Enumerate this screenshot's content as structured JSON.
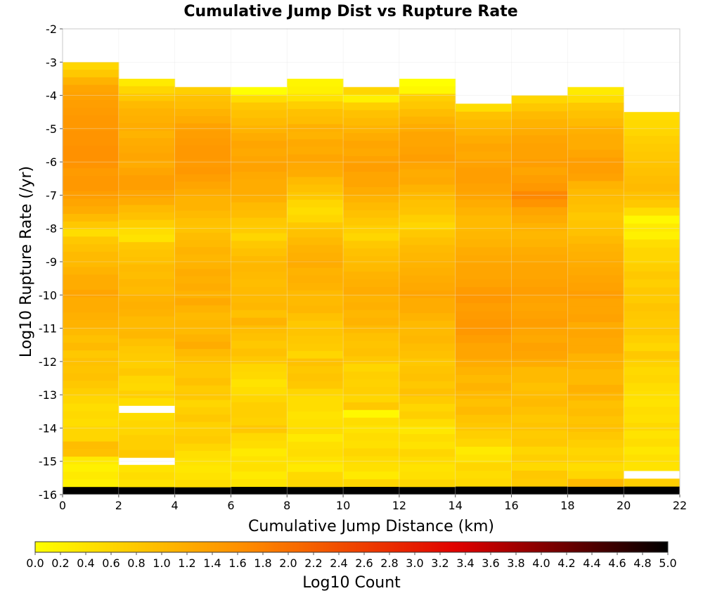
{
  "chart_data": {
    "type": "heatmap",
    "title": "Cumulative Jump Dist vs Rupture Rate",
    "xlabel": "Cumulative Jump Distance (km)",
    "ylabel": "Log10 Rupture Rate (/yr)",
    "colorbar_label": "Log10 Count",
    "xlim": [
      0,
      22
    ],
    "ylim": [
      -16,
      -2
    ],
    "x_ticks": [
      0,
      2,
      4,
      6,
      8,
      10,
      12,
      14,
      16,
      18,
      20,
      22
    ],
    "y_ticks": [
      -2,
      -3,
      -4,
      -5,
      -6,
      -7,
      -8,
      -9,
      -10,
      -11,
      -12,
      -13,
      -14,
      -15,
      -16
    ],
    "colorbar_ticks": [
      "0.0",
      "0.2",
      "0.4",
      "0.6",
      "0.8",
      "1.0",
      "1.2",
      "1.4",
      "1.6",
      "1.8",
      "2.0",
      "2.2",
      "2.4",
      "2.6",
      "2.8",
      "3.0",
      "3.2",
      "3.4",
      "3.6",
      "3.8",
      "4.0",
      "4.2",
      "4.4",
      "4.6",
      "4.8",
      "5.0"
    ],
    "colorbar_range": [
      0,
      5
    ],
    "colormap": [
      "#ffff00",
      "#ff8c00",
      "#e00000",
      "#000000"
    ],
    "x_bin_edges": [
      0,
      2,
      4,
      6,
      8,
      10,
      12,
      14,
      16,
      18,
      20,
      22
    ],
    "y_bin_width": 0.25,
    "column_tops": [
      -3.0,
      -3.5,
      -3.75,
      -3.75,
      -3.5,
      -3.75,
      -3.5,
      -4.25,
      -4.0,
      -3.75,
      -4.5
    ],
    "column_values": [
      [
        0.6,
        0.8,
        1.1,
        1.3,
        1.35,
        1.4,
        1.45,
        1.5,
        1.5,
        1.55,
        1.55,
        1.6,
        1.6,
        1.55,
        1.45,
        1.5,
        1.5,
        1.4,
        1.3,
        1.2,
        1.0,
        0.8,
        0.5,
        0.8,
        0.9,
        1.0,
        1.0,
        1.1,
        1.2,
        1.2,
        1.3,
        1.2,
        1.2,
        1.15,
        1.1,
        1.0,
        0.9,
        1.0,
        0.8,
        0.9,
        0.85,
        0.9,
        0.8,
        0.7,
        0.6,
        0.5,
        0.55,
        0.5,
        0.6,
        0.6,
        0.95,
        0.9,
        0.3,
        0.2,
        0.3,
        0.2,
        5.0
      ],
      [
        0.3,
        0.6,
        0.8,
        1.0,
        1.1,
        1.15,
        1.2,
        1.1,
        1.2,
        1.25,
        1.3,
        1.2,
        1.3,
        1.4,
        1.4,
        1.3,
        1.2,
        1.0,
        0.9,
        0.7,
        0.5,
        0.4,
        0.8,
        0.85,
        0.9,
        1.0,
        0.95,
        1.05,
        1.0,
        1.1,
        1.15,
        1.1,
        1.0,
        1.0,
        1.05,
        0.9,
        0.8,
        0.75,
        0.7,
        0.8,
        0.6,
        0.55,
        0.7,
        0.5,
        null,
        0.5,
        0.6,
        0.6,
        0.7,
        0.7,
        0.8,
        null,
        0.4,
        0.5,
        0.4,
        5.0
      ],
      [
        0.7,
        0.9,
        0.95,
        1.1,
        1.2,
        1.35,
        1.4,
        1.45,
        1.5,
        1.5,
        1.45,
        1.5,
        1.4,
        1.3,
        1.2,
        1.1,
        1.1,
        1.0,
        0.9,
        0.85,
        0.95,
        1.0,
        1.1,
        1.05,
        1.1,
        1.2,
        1.15,
        1.2,
        1.1,
        1.25,
        1.1,
        1.0,
        1.05,
        1.0,
        1.1,
        1.2,
        1.0,
        0.9,
        0.8,
        0.8,
        0.9,
        0.75,
        0.8,
        0.6,
        0.7,
        0.8,
        0.65,
        0.7,
        0.75,
        0.6,
        0.45,
        0.4,
        0.35,
        0.4,
        0.5,
        5.0
      ],
      [
        0.0,
        0.5,
        0.8,
        0.9,
        1.0,
        1.1,
        1.2,
        1.3,
        1.25,
        1.3,
        1.35,
        1.25,
        1.2,
        1.2,
        1.15,
        1.0,
        0.95,
        0.8,
        0.75,
        0.6,
        0.8,
        0.9,
        1.0,
        1.05,
        1.0,
        0.95,
        1.0,
        1.0,
        1.05,
        0.9,
        1.1,
        0.95,
        0.9,
        0.8,
        0.9,
        0.8,
        0.6,
        0.55,
        0.4,
        0.5,
        0.6,
        0.7,
        0.7,
        0.65,
        0.8,
        0.55,
        0.5,
        0.3,
        0.4,
        0.45,
        0.3,
        0.4,
        5.0
      ],
      [
        0.15,
        0.2,
        0.4,
        0.7,
        0.9,
        0.95,
        1.15,
        1.1,
        1.25,
        1.2,
        1.3,
        1.25,
        1.2,
        1.0,
        0.9,
        0.8,
        0.6,
        0.5,
        0.6,
        0.8,
        0.9,
        1.0,
        1.1,
        1.15,
        1.2,
        1.1,
        1.15,
        1.1,
        1.0,
        1.0,
        1.05,
        0.9,
        0.8,
        0.85,
        0.8,
        0.75,
        0.6,
        0.9,
        0.8,
        0.85,
        0.8,
        0.6,
        0.5,
        0.5,
        0.4,
        0.45,
        0.5,
        0.3,
        0.45,
        0.5,
        0.4,
        0.3,
        0.55,
        0.6,
        5.0
      ],
      [
        0.6,
        0.2,
        0.7,
        0.9,
        1.0,
        1.1,
        1.2,
        1.3,
        1.25,
        1.35,
        1.4,
        1.3,
        1.3,
        1.2,
        1.1,
        1.0,
        0.9,
        0.8,
        0.7,
        0.6,
        0.8,
        0.9,
        0.95,
        1.0,
        1.1,
        1.15,
        1.2,
        1.1,
        1.15,
        1.05,
        1.1,
        1.0,
        0.9,
        0.85,
        0.9,
        0.8,
        0.6,
        0.7,
        0.65,
        0.7,
        0.6,
        0.8,
        0.1,
        0.5,
        0.4,
        0.5,
        0.45,
        0.6,
        0.5,
        0.45,
        0.3,
        0.6,
        5.0
      ],
      [
        0.0,
        0.1,
        0.7,
        0.8,
        0.95,
        1.1,
        1.2,
        1.3,
        1.3,
        1.35,
        1.4,
        1.3,
        1.2,
        1.25,
        1.1,
        1.0,
        0.9,
        0.85,
        0.7,
        0.6,
        0.8,
        0.9,
        1.0,
        1.05,
        1.1,
        1.15,
        1.2,
        1.25,
        1.3,
        1.2,
        1.2,
        1.1,
        1.0,
        1.0,
        1.05,
        0.95,
        0.9,
        0.8,
        0.85,
        0.9,
        0.8,
        0.9,
        0.75,
        0.6,
        0.7,
        0.5,
        0.35,
        0.5,
        0.4,
        0.6,
        0.5,
        0.4,
        0.45,
        0.6,
        5.0
      ],
      [
        0.5,
        0.9,
        1.0,
        1.1,
        1.2,
        1.3,
        1.25,
        1.35,
        1.4,
        1.4,
        1.35,
        1.3,
        1.2,
        1.1,
        1.0,
        1.0,
        1.05,
        1.1,
        1.2,
        1.25,
        1.3,
        1.3,
        1.35,
        1.45,
        1.5,
        1.4,
        1.45,
        1.5,
        1.5,
        1.4,
        1.3,
        1.3,
        1.2,
        1.1,
        1.0,
        1.1,
        1.0,
        0.9,
        1.0,
        0.85,
        0.8,
        0.7,
        0.6,
        0.3,
        0.4,
        0.6,
        0.5,
        0.55,
        5.0
      ],
      [
        0.6,
        0.8,
        1.0,
        1.1,
        1.2,
        1.3,
        1.35,
        1.35,
        1.4,
        1.3,
        1.4,
        1.5,
        1.7,
        1.55,
        1.3,
        1.2,
        1.1,
        1.05,
        1.1,
        1.2,
        1.25,
        1.3,
        1.3,
        1.35,
        1.4,
        1.35,
        1.3,
        1.35,
        1.4,
        1.3,
        1.25,
        1.35,
        1.3,
        1.2,
        1.0,
        1.0,
        0.9,
        0.95,
        1.0,
        0.9,
        0.8,
        0.85,
        0.75,
        0.8,
        0.6,
        0.7,
        0.55,
        0.8,
        0.75,
        5.0
      ],
      [
        0.3,
        0.5,
        0.8,
        0.9,
        1.0,
        1.15,
        1.2,
        1.2,
        1.3,
        1.4,
        1.4,
        1.35,
        1.1,
        1.0,
        0.95,
        0.9,
        0.8,
        0.85,
        0.9,
        1.0,
        1.1,
        1.15,
        1.2,
        1.25,
        1.3,
        1.35,
        1.4,
        1.3,
        1.3,
        1.35,
        1.2,
        1.3,
        1.25,
        1.25,
        1.1,
        1.1,
        1.0,
        1.0,
        1.15,
        1.05,
        0.9,
        0.95,
        0.85,
        0.9,
        0.8,
        0.7,
        0.6,
        0.65,
        0.5,
        0.6,
        1.0,
        5.0
      ],
      [
        0.5,
        0.55,
        0.6,
        0.7,
        0.75,
        0.8,
        0.85,
        0.9,
        0.95,
        1.0,
        0.9,
        0.8,
        0.5,
        0.1,
        0.3,
        0.2,
        0.5,
        0.6,
        0.6,
        0.7,
        0.8,
        0.7,
        0.8,
        0.75,
        0.85,
        0.8,
        0.75,
        0.8,
        0.7,
        0.6,
        0.8,
        0.65,
        0.55,
        0.6,
        0.5,
        0.45,
        0.4,
        0.5,
        0.45,
        0.55,
        0.4,
        0.5,
        0.35,
        0.45,
        0.4,
        null,
        0.7,
        5.0
      ]
    ]
  }
}
